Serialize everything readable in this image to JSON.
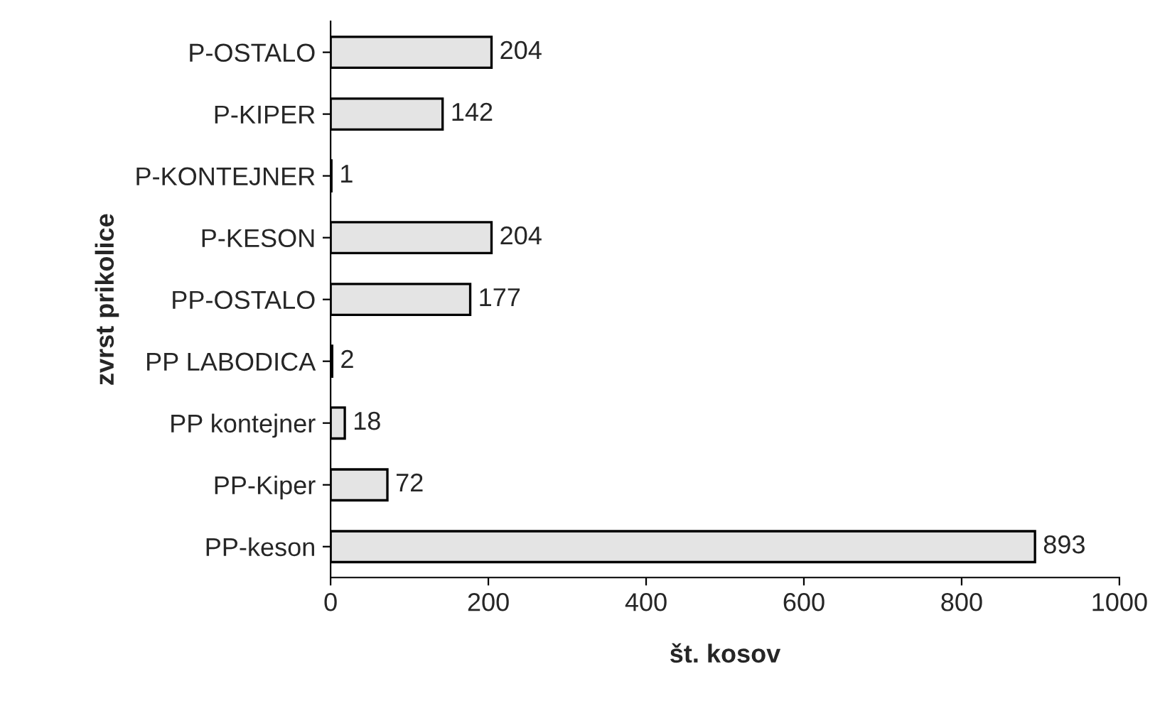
{
  "chart_data": {
    "type": "bar",
    "orientation": "horizontal",
    "categories": [
      "P-OSTALO",
      "P-KIPER",
      "P-KONTEJNER",
      "P-KESON",
      "PP-OSTALO",
      "PP LABODICA",
      "PP kontejner",
      "PP-Kiper",
      "PP-keson"
    ],
    "values": [
      204,
      142,
      1,
      204,
      177,
      2,
      18,
      72,
      893
    ],
    "color": "#e4e4e4",
    "xlim": [
      0,
      1000
    ],
    "xticks": [
      0,
      200,
      400,
      600,
      800,
      1000
    ],
    "xlabel": "št. kosov",
    "ylabel": "zvrst prikolice",
    "data_labels": true,
    "grid": false,
    "legend": false
  }
}
